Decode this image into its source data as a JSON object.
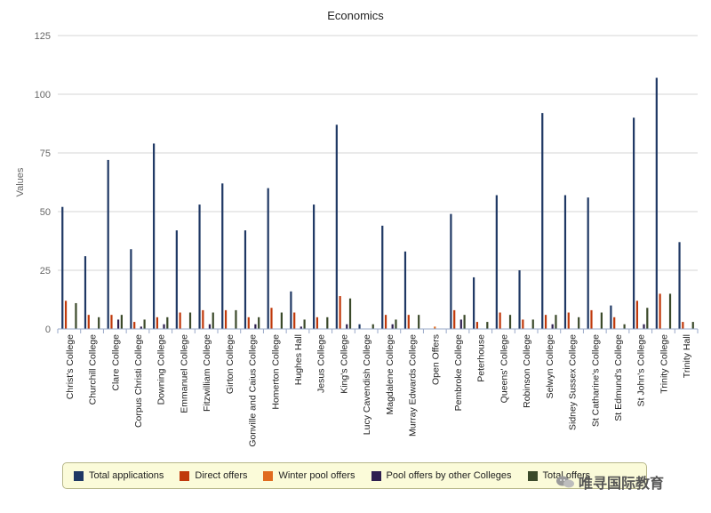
{
  "chart_data": {
    "type": "bar",
    "title": "Economics",
    "xlabel": "",
    "ylabel": "Values",
    "ylim": [
      0,
      125
    ],
    "yticks": [
      0,
      25,
      50,
      75,
      100,
      125
    ],
    "grid": true,
    "legend_position": "bottom",
    "categories": [
      "Christ's College",
      "Churchill College",
      "Clare College",
      "Corpus Christi College",
      "Downing College",
      "Emmanuel College",
      "Fitzwilliam College",
      "Girton College",
      "Gonville and Caius College",
      "Homerton College",
      "Hughes Hall",
      "Jesus College",
      "King's College",
      "Lucy Cavendish College",
      "Magdalene College",
      "Murray Edwards College",
      "Open Offers",
      "Pembroke College",
      "Peterhouse",
      "Queens' College",
      "Robinson College",
      "Selwyn College",
      "Sidney Sussex College",
      "St Catharine's College",
      "St Edmund's College",
      "St John's College",
      "Trinity College",
      "Trinity Hall"
    ],
    "series": [
      {
        "name": "Total applications",
        "color": "#1f3864",
        "values": [
          52,
          31,
          72,
          34,
          79,
          42,
          53,
          62,
          42,
          60,
          16,
          53,
          87,
          2,
          44,
          33,
          0,
          49,
          22,
          57,
          25,
          92,
          57,
          56,
          10,
          90,
          107,
          37
        ]
      },
      {
        "name": "Direct offers",
        "color": "#c0390b",
        "values": [
          12,
          6,
          6,
          3,
          5,
          7,
          8,
          8,
          5,
          9,
          7,
          5,
          14,
          0,
          6,
          6,
          0,
          8,
          3,
          7,
          4,
          6,
          7,
          8,
          5,
          12,
          15,
          3
        ]
      },
      {
        "name": "Winter pool offers",
        "color": "#e06b1f",
        "values": [
          0,
          0,
          0,
          0,
          0,
          0,
          0,
          0,
          0,
          0,
          0,
          0,
          0,
          0,
          0,
          0,
          1,
          0,
          0,
          0,
          0,
          0,
          0,
          0,
          0,
          0,
          0,
          0
        ]
      },
      {
        "name": "Pool offers by other Colleges",
        "color": "#2e1f4f",
        "values": [
          0,
          0,
          4,
          1,
          2,
          0,
          2,
          0,
          2,
          0,
          1,
          0,
          2,
          0,
          2,
          0,
          0,
          4,
          0,
          0,
          0,
          2,
          0,
          0,
          0,
          2,
          0,
          0
        ]
      },
      {
        "name": "Total offers",
        "color": "#3b4a2a",
        "values": [
          11,
          5,
          6,
          4,
          5,
          7,
          7,
          8,
          5,
          7,
          4,
          5,
          13,
          2,
          4,
          6,
          0,
          6,
          3,
          6,
          4,
          6,
          5,
          7,
          2,
          9,
          15,
          3
        ]
      }
    ]
  },
  "legend": {
    "items": [
      {
        "label": "Total applications",
        "color": "#1f3864"
      },
      {
        "label": "Direct offers",
        "color": "#c0390b"
      },
      {
        "label": "Winter pool offers",
        "color": "#e06b1f"
      },
      {
        "label": "Pool offers by other Colleges",
        "color": "#2e1f4f"
      },
      {
        "label": "Total offers",
        "color": "#3b4a2a"
      }
    ]
  },
  "watermark": {
    "text": "唯寻国际教育",
    "icon": "wechat-icon"
  }
}
